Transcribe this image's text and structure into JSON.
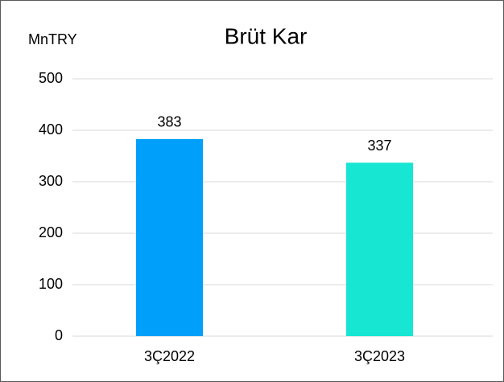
{
  "chart_data": {
    "type": "bar",
    "title": "Brüt Kar",
    "y_label": "MnTRY",
    "categories": [
      "3Ç2022",
      "3Ç2023"
    ],
    "values": [
      383,
      337
    ],
    "colors": [
      "#00a0fa",
      "#17e6d2"
    ],
    "ylim": [
      0,
      500
    ],
    "yticks": [
      0,
      100,
      200,
      300,
      400,
      500
    ],
    "grid": true
  }
}
